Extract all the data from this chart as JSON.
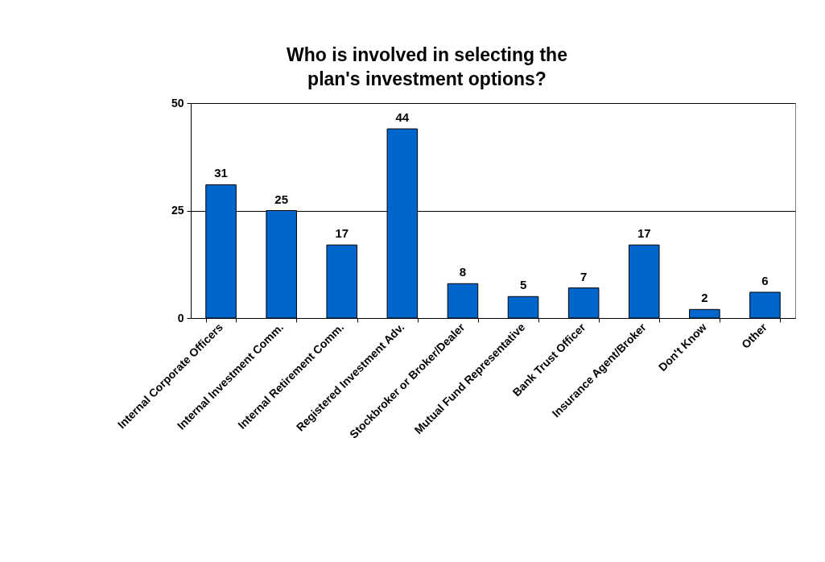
{
  "chart_data": {
    "type": "bar",
    "title": "Who is involved in selecting the plan's investment options?",
    "categories": [
      "Internal Corporate Officers",
      "Internal Investment Comm.",
      "Internal Retirement Comm.",
      "Registered Investment Adv.",
      "Stockbroker or Broker/Dealer",
      "Mutual Fund Representative",
      "Bank Trust Officer",
      "Insurance Agent/Broker",
      "Don't Know",
      "Other"
    ],
    "values": [
      31,
      25,
      17,
      44,
      8,
      5,
      7,
      17,
      2,
      6
    ],
    "color": "#0066cc",
    "ylim": [
      0,
      50
    ],
    "yticks": [
      0,
      25,
      50
    ],
    "grid": "y",
    "data_labels": true
  }
}
